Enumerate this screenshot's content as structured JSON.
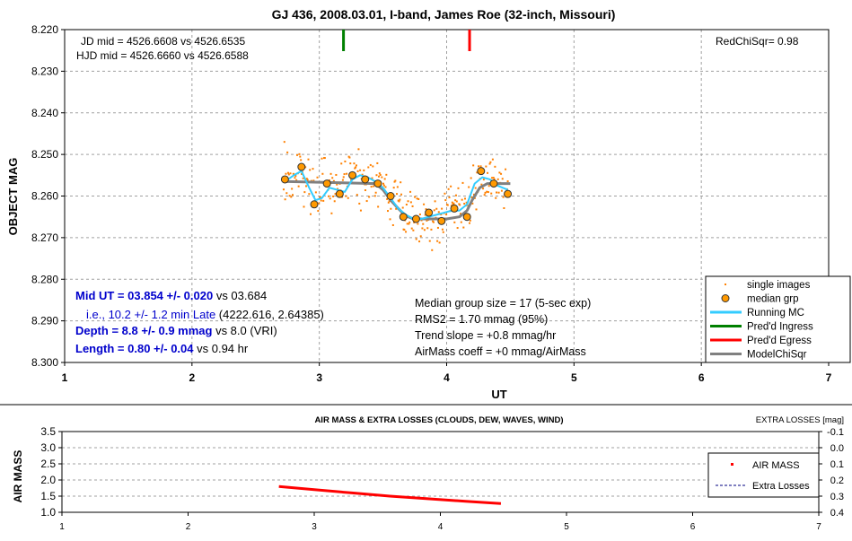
{
  "chart_data": [
    {
      "type": "scatter",
      "title": "GJ 436, 2008.03.01, I-band, James Roe (32-inch, Missouri)",
      "xlabel": "UT",
      "ylabel": "OBJECT MAG",
      "xlim": [
        1,
        7
      ],
      "ylim": [
        8.3,
        8.22
      ],
      "y_inverted": true,
      "grid": true,
      "legend_position": "bottom-right",
      "x_ticks": [
        "1",
        "2",
        "3",
        "4",
        "5",
        "6",
        "7"
      ],
      "y_ticks": [
        "8.220",
        "8.230",
        "8.240",
        "8.250",
        "8.260",
        "8.270",
        "8.280",
        "8.290",
        "8.300"
      ],
      "annotations": {
        "jd_mid": "JD mid = 4526.6608 vs 4526.6535",
        "hjd_mid": "HJD mid = 4526.6660 vs 4526.6588",
        "redchisqr": "RedChiSqr= 0.98",
        "mid_ut_bold": "Mid UT = 03.854 +/- 0.020",
        "mid_ut_rest": " vs 03.684",
        "late_blue": "i.e., 10.2 +/- 1.2 min Late",
        "late_rest": " (4222.616, 2.64385)",
        "depth_bold": "Depth = 8.8 +/- 0.9 mmag",
        "depth_rest": " vs 8.0 (VRI)",
        "length_bold": "Length = 0.80 +/- 0.04",
        "length_rest": " vs 0.94 hr",
        "median_group": "Median group size = 17 (5-sec exp)",
        "rms2": "RMS2 = 1.70 mmag (95%)",
        "trend": "Trend slope = +0.8 mmag/hr",
        "airmass_coeff": "AirMass coeff = +0 mmag/AirMass"
      },
      "legend": [
        {
          "label": "single images",
          "color": "#ff8000",
          "style": "dot"
        },
        {
          "label": "median grp",
          "color": "#ff9900",
          "style": "circle"
        },
        {
          "label": "Running MC",
          "color": "#33ccff",
          "style": "line"
        },
        {
          "label": "Pred'd Ingress",
          "color": "#008000",
          "style": "line"
        },
        {
          "label": "Pred'd Egress",
          "color": "#ff0000",
          "style": "line"
        },
        {
          "label": "ModelChiSqr",
          "color": "#808080",
          "style": "line"
        }
      ],
      "ingress_x": 3.19,
      "egress_x": 4.18,
      "series": [
        {
          "name": "median grp",
          "x": [
            2.73,
            2.86,
            2.96,
            3.06,
            3.16,
            3.26,
            3.36,
            3.46,
            3.56,
            3.66,
            3.76,
            3.86,
            3.96,
            4.06,
            4.16,
            4.27,
            4.37,
            4.48
          ],
          "y": [
            8.256,
            8.253,
            8.262,
            8.257,
            8.2595,
            8.255,
            8.256,
            8.257,
            8.26,
            8.265,
            8.2655,
            8.264,
            8.266,
            8.263,
            8.265,
            8.254,
            8.257,
            8.2595
          ]
        },
        {
          "name": "Running MC",
          "x": [
            2.73,
            2.8,
            2.86,
            2.92,
            2.97,
            3.02,
            3.08,
            3.14,
            3.2,
            3.26,
            3.32,
            3.38,
            3.44,
            3.5,
            3.56,
            3.62,
            3.68,
            3.74,
            3.8,
            3.86,
            3.92,
            3.98,
            4.04,
            4.1,
            4.16,
            4.22,
            4.28,
            4.34,
            4.4,
            4.48
          ],
          "y": [
            8.2565,
            8.255,
            8.254,
            8.258,
            8.261,
            8.2605,
            8.258,
            8.2585,
            8.259,
            8.256,
            8.255,
            8.2555,
            8.2565,
            8.258,
            8.2605,
            8.263,
            8.2645,
            8.2655,
            8.2655,
            8.265,
            8.2645,
            8.264,
            8.2635,
            8.2635,
            8.262,
            8.257,
            8.2555,
            8.256,
            8.2575,
            8.2585
          ]
        },
        {
          "name": "ModelChiSqr",
          "x": [
            2.72,
            3.44,
            3.5,
            3.56,
            3.62,
            3.68,
            3.74,
            4.0,
            4.1,
            4.16,
            4.2,
            4.26,
            4.32,
            4.5
          ],
          "y": [
            8.2565,
            8.257,
            8.2585,
            8.261,
            8.263,
            8.2648,
            8.2655,
            8.2655,
            8.265,
            8.2635,
            8.261,
            8.258,
            8.257,
            8.257
          ]
        }
      ],
      "scatter_envelope": {
        "name": "single images",
        "x": [
          2.72,
          2.85,
          2.95,
          3.05,
          3.15,
          3.25,
          3.35,
          3.45,
          3.55,
          3.65,
          3.75,
          3.85,
          3.95,
          4.05,
          4.15,
          4.25,
          4.35,
          4.48
        ],
        "center": [
          8.256,
          8.255,
          8.259,
          8.257,
          8.258,
          8.2555,
          8.256,
          8.257,
          8.2595,
          8.264,
          8.265,
          8.2645,
          8.265,
          8.263,
          8.263,
          8.256,
          8.2565,
          8.259
        ],
        "spread": 0.006
      }
    },
    {
      "type": "line",
      "title": "AIR MASS & EXTRA LOSSES (CLOUDS, DEW, WAVES, WIND)",
      "ylabel": "AIR MASS",
      "y2label": "EXTRA LOSSES [mag]",
      "xlim": [
        1,
        7
      ],
      "ylim": [
        1.0,
        3.5
      ],
      "y2lim": [
        0.4,
        -0.1
      ],
      "legend_position": "right",
      "x_ticks": [
        "1",
        "2",
        "3",
        "4",
        "5",
        "6",
        "7"
      ],
      "y_ticks": [
        "1.0",
        "1.5",
        "2.0",
        "2.5",
        "3.0",
        "3.5"
      ],
      "y2_ticks": [
        "-0.1",
        "0.0",
        "0.1",
        "0.2",
        "0.3",
        "0.4"
      ],
      "legend": [
        {
          "label": "AIR MASS",
          "color": "#ff0000",
          "style": "dot"
        },
        {
          "label": "Extra Losses",
          "color": "#000080",
          "style": "dash"
        }
      ],
      "series": [
        {
          "name": "AIR MASS",
          "x": [
            2.72,
            3.0,
            3.3,
            3.6,
            3.9,
            4.2,
            4.48
          ],
          "y": [
            1.8,
            1.7,
            1.6,
            1.5,
            1.42,
            1.34,
            1.27
          ]
        }
      ]
    }
  ]
}
